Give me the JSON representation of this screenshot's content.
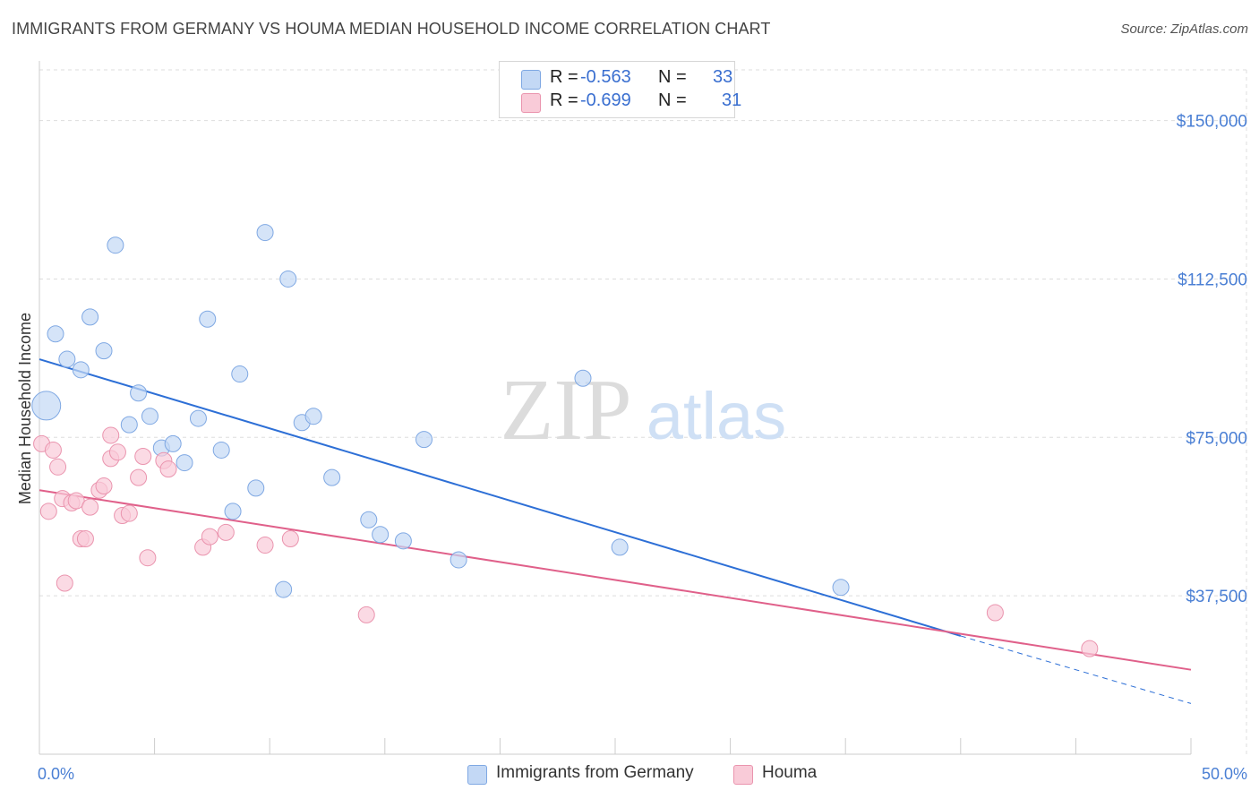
{
  "title": "IMMIGRANTS FROM GERMANY VS HOUMA MEDIAN HOUSEHOLD INCOME CORRELATION CHART",
  "source": "Source: ZipAtlas.com",
  "watermark": {
    "zip": "ZIP",
    "atlas": "atlas"
  },
  "legend": {
    "r_label": "R =",
    "n_label": "N =",
    "rows": [
      {
        "r": "-0.563",
        "n": "33",
        "color": "#a9c7f0"
      },
      {
        "r": "-0.699",
        "n": "31",
        "color": "#f6b8cb"
      }
    ]
  },
  "colors": {
    "blue_fill": "#c3d8f5",
    "blue_stroke": "#7fa8e3",
    "blue_line": "#2d6fd6",
    "pink_fill": "#f9cbd8",
    "pink_stroke": "#ea94ae",
    "pink_line": "#e0608a",
    "tick_text": "#4a7fd4",
    "grid": "#dddddd"
  },
  "chart_data": {
    "type": "scatter",
    "title": "IMMIGRANTS FROM GERMANY VS HOUMA MEDIAN HOUSEHOLD INCOME CORRELATION CHART",
    "xlabel": "",
    "ylabel": "Median Household Income",
    "xlim": [
      0,
      50
    ],
    "ylim": [
      0,
      162000
    ],
    "x_tick_labels": [
      "0.0%",
      "50.0%"
    ],
    "y_ticks": [
      37500,
      75000,
      112500,
      150000
    ],
    "y_tick_labels": [
      "$37,500",
      "$75,000",
      "$112,500",
      "$150,000"
    ],
    "series": [
      {
        "name": "Immigrants from Germany",
        "color": "#7fa8e3",
        "points": [
          [
            0.3,
            82500,
            16
          ],
          [
            0.7,
            99500,
            9
          ],
          [
            1.2,
            93500,
            9
          ],
          [
            1.8,
            91000,
            9
          ],
          [
            2.2,
            103500,
            9
          ],
          [
            2.8,
            95500,
            9
          ],
          [
            3.3,
            120500,
            9
          ],
          [
            3.9,
            78000,
            9
          ],
          [
            4.3,
            85500,
            9
          ],
          [
            4.8,
            80000,
            9
          ],
          [
            5.3,
            72500,
            9
          ],
          [
            5.8,
            73500,
            9
          ],
          [
            6.3,
            69000,
            9
          ],
          [
            6.9,
            79500,
            9
          ],
          [
            7.3,
            103000,
            9
          ],
          [
            7.9,
            72000,
            9
          ],
          [
            8.4,
            57500,
            9
          ],
          [
            8.7,
            90000,
            9
          ],
          [
            9.4,
            63000,
            9
          ],
          [
            9.8,
            123500,
            9
          ],
          [
            10.6,
            39000,
            9
          ],
          [
            10.8,
            112500,
            9
          ],
          [
            11.4,
            78500,
            9
          ],
          [
            11.9,
            80000,
            9
          ],
          [
            12.7,
            65500,
            9
          ],
          [
            14.3,
            55500,
            9
          ],
          [
            14.8,
            52000,
            9
          ],
          [
            15.8,
            50500,
            9
          ],
          [
            16.7,
            74500,
            9
          ],
          [
            18.2,
            46000,
            9
          ],
          [
            23.6,
            89000,
            9
          ],
          [
            25.2,
            49000,
            9
          ],
          [
            34.8,
            39500,
            9
          ]
        ],
        "trend": {
          "x": [
            0,
            40
          ],
          "y": [
            93500,
            28000
          ],
          "dashed_x": [
            40,
            50
          ],
          "dashed_y": [
            28000,
            12000
          ]
        }
      },
      {
        "name": "Houma",
        "color": "#ea94ae",
        "points": [
          [
            0.1,
            73500,
            9
          ],
          [
            0.4,
            57500,
            9
          ],
          [
            0.6,
            72000,
            9
          ],
          [
            0.8,
            68000,
            9
          ],
          [
            1.0,
            60500,
            9
          ],
          [
            1.1,
            40500,
            9
          ],
          [
            1.4,
            59500,
            9
          ],
          [
            1.6,
            60000,
            9
          ],
          [
            1.8,
            51000,
            9
          ],
          [
            2.0,
            51000,
            9
          ],
          [
            2.2,
            58500,
            9
          ],
          [
            2.6,
            62500,
            9
          ],
          [
            2.8,
            63500,
            9
          ],
          [
            3.1,
            75500,
            9
          ],
          [
            3.1,
            70000,
            9
          ],
          [
            3.4,
            71500,
            9
          ],
          [
            3.6,
            56500,
            9
          ],
          [
            3.9,
            57000,
            9
          ],
          [
            4.3,
            65500,
            9
          ],
          [
            4.5,
            70500,
            9
          ],
          [
            4.7,
            46500,
            9
          ],
          [
            5.4,
            69500,
            9
          ],
          [
            5.6,
            67500,
            9
          ],
          [
            7.1,
            49000,
            9
          ],
          [
            7.4,
            51500,
            9
          ],
          [
            8.1,
            52500,
            9
          ],
          [
            9.8,
            49500,
            9
          ],
          [
            10.9,
            51000,
            9
          ],
          [
            14.2,
            33000,
            9
          ],
          [
            41.5,
            33500,
            9
          ],
          [
            45.6,
            25000,
            9
          ]
        ],
        "trend": {
          "x": [
            0,
            50
          ],
          "y": [
            62500,
            20000
          ]
        }
      }
    ]
  }
}
